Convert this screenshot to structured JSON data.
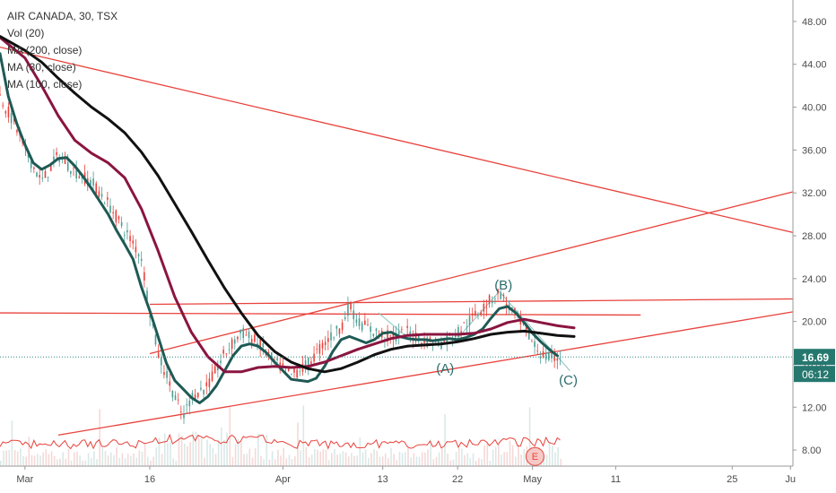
{
  "legend": {
    "symbol": "AIR CANADA, 30, TSX",
    "vol": "Vol (20)",
    "ma200": "MA (200, close)",
    "ma30": "MA (30, close)",
    "ma100": "MA (100, close)"
  },
  "price_badges": {
    "last_price": "16.69",
    "countdown": "06:12"
  },
  "chart_data": {
    "type": "candlestick",
    "title": "AIR CANADA, 30, TSX",
    "ylim": [
      6.5,
      50
    ],
    "y_ticks": [
      "8.00",
      "12.00",
      "16.00",
      "20.00",
      "24.00",
      "28.00",
      "32.00",
      "36.00",
      "40.00",
      "44.00",
      "48.00"
    ],
    "x_ticks": [
      {
        "label": "Mar",
        "day": 0
      },
      {
        "label": "16",
        "day": 15
      },
      {
        "label": "Apr",
        "day": 31
      },
      {
        "label": "13",
        "day": 43
      },
      {
        "label": "22",
        "day": 52
      },
      {
        "label": "May",
        "day": 61
      },
      {
        "label": "11",
        "day": 71
      },
      {
        "label": "25",
        "day": 85
      },
      {
        "label": "Ju",
        "day": 92
      }
    ],
    "xlim_days": [
      -3,
      92.3
    ],
    "grid": false,
    "series": [
      {
        "name": "MA (30, close)",
        "color": "#1f5a55",
        "points": [
          [
            -3,
            45
          ],
          [
            -2,
            41
          ],
          [
            -1,
            38.5
          ],
          [
            0,
            36.5
          ],
          [
            1,
            34.8
          ],
          [
            2,
            34.2
          ],
          [
            3,
            34.6
          ],
          [
            4,
            35.2
          ],
          [
            5,
            35.3
          ],
          [
            6,
            34.5
          ],
          [
            7,
            33.5
          ],
          [
            8,
            32.4
          ],
          [
            9,
            31.2
          ],
          [
            10,
            30
          ],
          [
            11,
            28.5
          ],
          [
            12,
            27.2
          ],
          [
            13,
            25.8
          ],
          [
            14,
            23.2
          ],
          [
            15,
            21
          ],
          [
            16,
            18.6
          ],
          [
            17,
            16.1
          ],
          [
            18,
            14.5
          ],
          [
            19,
            13.7
          ],
          [
            20,
            12.9
          ],
          [
            21,
            12.4
          ],
          [
            22,
            13
          ],
          [
            23,
            14
          ],
          [
            24,
            15.4
          ],
          [
            25,
            16.8
          ],
          [
            26,
            17.7
          ],
          [
            27,
            17.9
          ],
          [
            28,
            17.7
          ],
          [
            29,
            17.1
          ],
          [
            30,
            16.2
          ],
          [
            31,
            15.4
          ],
          [
            32,
            14.6
          ],
          [
            33,
            14.5
          ],
          [
            34,
            14.4
          ],
          [
            35,
            14.7
          ],
          [
            36,
            15.8
          ],
          [
            37,
            17.2
          ],
          [
            38,
            18.3
          ],
          [
            39,
            18.6
          ],
          [
            40,
            18.3
          ],
          [
            41,
            18
          ],
          [
            42,
            18.3
          ],
          [
            43,
            18.9
          ],
          [
            44,
            19
          ],
          [
            45,
            18.6
          ],
          [
            46,
            18.4
          ],
          [
            47,
            18.3
          ],
          [
            48,
            18.3
          ],
          [
            49,
            18.2
          ],
          [
            50,
            18.3
          ],
          [
            51,
            18.4
          ],
          [
            52,
            18.3
          ],
          [
            53,
            18.5
          ],
          [
            54,
            18.8
          ],
          [
            55,
            19.3
          ],
          [
            56,
            20.3
          ],
          [
            57,
            21.2
          ],
          [
            58,
            21.4
          ],
          [
            59,
            20.8
          ],
          [
            60,
            19.9
          ],
          [
            61,
            18.9
          ],
          [
            62,
            18.1
          ],
          [
            63,
            17.4
          ],
          [
            64,
            16.8
          ]
        ]
      },
      {
        "name": "MA (100, close)",
        "color": "#8a1540",
        "points": [
          [
            -3,
            46.5
          ],
          [
            0,
            44.6
          ],
          [
            2,
            42
          ],
          [
            4,
            39.2
          ],
          [
            6,
            36.9
          ],
          [
            8,
            35.7
          ],
          [
            10,
            34.8
          ],
          [
            12,
            33.4
          ],
          [
            14,
            30.5
          ],
          [
            16,
            26.6
          ],
          [
            18,
            22.3
          ],
          [
            20,
            19
          ],
          [
            22,
            16.7
          ],
          [
            24,
            15.3
          ],
          [
            26,
            15.3
          ],
          [
            28,
            15.7
          ],
          [
            30,
            15.8
          ],
          [
            32,
            15.7
          ],
          [
            34,
            15.8
          ],
          [
            36,
            16.2
          ],
          [
            38,
            16.8
          ],
          [
            40,
            17.4
          ],
          [
            42,
            17.9
          ],
          [
            44,
            18.4
          ],
          [
            46,
            18.7
          ],
          [
            48,
            18.8
          ],
          [
            50,
            18.8
          ],
          [
            52,
            18.8
          ],
          [
            54,
            18.9
          ],
          [
            56,
            19.3
          ],
          [
            58,
            19.9
          ],
          [
            60,
            20.2
          ],
          [
            62,
            19.9
          ],
          [
            64,
            19.6
          ],
          [
            66,
            19.4
          ]
        ]
      },
      {
        "name": "MA (200, close)",
        "color": "#111111",
        "points": [
          [
            -3,
            46.6
          ],
          [
            0,
            45.3
          ],
          [
            2,
            44.2
          ],
          [
            4,
            42.7
          ],
          [
            6,
            41.3
          ],
          [
            8,
            40
          ],
          [
            10,
            38.9
          ],
          [
            12,
            37.6
          ],
          [
            14,
            35.8
          ],
          [
            16,
            33.6
          ],
          [
            18,
            31
          ],
          [
            20,
            28.4
          ],
          [
            22,
            25.7
          ],
          [
            24,
            23.1
          ],
          [
            26,
            20.8
          ],
          [
            28,
            18.7
          ],
          [
            30,
            17.2
          ],
          [
            32,
            16.2
          ],
          [
            34,
            15.6
          ],
          [
            36,
            15.3
          ],
          [
            38,
            15.6
          ],
          [
            40,
            16.2
          ],
          [
            42,
            16.9
          ],
          [
            44,
            17.4
          ],
          [
            46,
            17.7
          ],
          [
            48,
            17.8
          ],
          [
            50,
            17.9
          ],
          [
            52,
            18.1
          ],
          [
            54,
            18.4
          ],
          [
            56,
            18.8
          ],
          [
            58,
            19
          ],
          [
            60,
            19.1
          ],
          [
            62,
            18.9
          ],
          [
            64,
            18.7
          ],
          [
            66,
            18.6
          ]
        ]
      }
    ],
    "trend_lines": [
      {
        "points": [
          [
            -3,
            45.6
          ],
          [
            92.3,
            28.3
          ]
        ],
        "color": "#e8423c"
      },
      {
        "points": [
          [
            15,
            17
          ],
          [
            92.3,
            32.1
          ]
        ],
        "color": "#e8423c"
      },
      {
        "points": [
          [
            4,
            9.4
          ],
          [
            92.3,
            20.9
          ]
        ],
        "color": "#e8423c"
      },
      {
        "points": [
          [
            15,
            21.6
          ],
          [
            92.3,
            22.1
          ]
        ],
        "color": "#e8423c"
      },
      {
        "points": [
          [
            -3,
            20.8
          ],
          [
            74,
            20.6
          ]
        ],
        "color": "#e8423c"
      }
    ],
    "last_price": 16.69,
    "wave_labels": [
      {
        "text": "(A)",
        "day": 50.5,
        "y": 15.2
      },
      {
        "text": "(B)",
        "day": 57.5,
        "y": 23
      },
      {
        "text": "(C)",
        "day": 65.3,
        "y": 14.1
      },
      {
        "text": "E",
        "day": 61.3,
        "y": 7.4
      }
    ]
  }
}
